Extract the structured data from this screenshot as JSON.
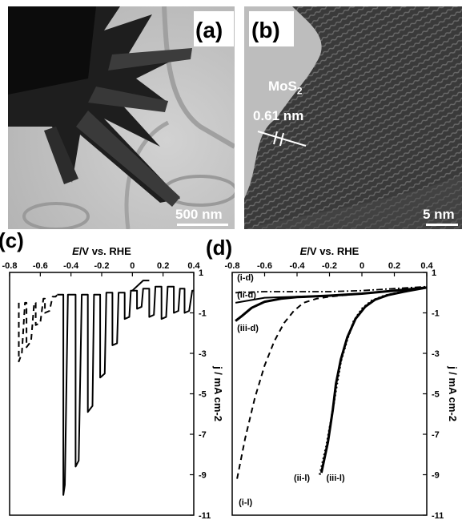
{
  "panels": {
    "a": {
      "label": "(a)",
      "scale_bar": "500 nm"
    },
    "b": {
      "label": "(b)",
      "scale_bar": "5 nm",
      "material": "MoS",
      "material_sub": "2",
      "spacing": "0.61 nm"
    }
  },
  "colors": {
    "ink": "#000000",
    "micrograph_light": "#c8c8c8",
    "micrograph_dark": "#1a1a1a"
  },
  "chart_data": [
    {
      "type": "line",
      "panel_label": "(c)",
      "xlabel_italic": "E",
      "xlabel_rest": "/V vs. RHE",
      "xlim": [
        -0.8,
        0.4
      ],
      "ylim": [
        -11,
        1
      ],
      "x_axis_position": "top",
      "y_axis_position": "right",
      "xticks": [
        "-0.8",
        "-0.6",
        "-0.4",
        "-0.2",
        "0",
        "0.2",
        "0.4"
      ],
      "yticks": [
        "1",
        "-1",
        "-3",
        "-5",
        "-7",
        "-9",
        "-11"
      ],
      "ylabel": "j / mA cm-2",
      "series": [
        {
          "style": "dashed",
          "points": [
            [
              -0.74,
              -0.5
            ],
            [
              -0.74,
              -3.4
            ],
            [
              -0.72,
              -3.0
            ],
            [
              -0.7,
              -0.5
            ],
            [
              -0.69,
              -0.5
            ],
            [
              -0.69,
              -2.7
            ],
            [
              -0.66,
              -2.4
            ],
            [
              -0.64,
              -0.5
            ],
            [
              -0.63,
              -0.5
            ],
            [
              -0.63,
              -1.6
            ],
            [
              -0.6,
              -1.5
            ],
            [
              -0.58,
              -0.3
            ],
            [
              -0.57,
              -0.3
            ],
            [
              -0.57,
              -1.0
            ],
            [
              -0.54,
              -0.9
            ],
            [
              -0.52,
              -0.2
            ],
            [
              -0.5,
              -0.2
            ],
            [
              -0.48,
              0
            ]
          ]
        },
        {
          "style": "solid",
          "points": [
            [
              -0.49,
              -0.1
            ],
            [
              -0.45,
              -0.1
            ],
            [
              -0.45,
              -10.0
            ],
            [
              -0.44,
              -9.5
            ],
            [
              -0.42,
              -0.1
            ],
            [
              -0.37,
              -0.1
            ],
            [
              -0.37,
              -8.6
            ],
            [
              -0.35,
              -8.3
            ],
            [
              -0.33,
              -0.1
            ],
            [
              -0.29,
              -0.1
            ],
            [
              -0.29,
              -5.9
            ],
            [
              -0.26,
              -5.6
            ],
            [
              -0.25,
              -0.1
            ],
            [
              -0.21,
              -0.1
            ],
            [
              -0.21,
              -4.2
            ],
            [
              -0.18,
              -4.0
            ],
            [
              -0.17,
              0
            ],
            [
              -0.13,
              0
            ],
            [
              -0.13,
              -2.6
            ],
            [
              -0.1,
              -2.5
            ],
            [
              -0.09,
              0
            ],
            [
              -0.05,
              0
            ],
            [
              -0.05,
              -1.3
            ],
            [
              -0.02,
              -1.2
            ],
            [
              -0.01,
              0.1
            ],
            [
              0.03,
              0.1
            ],
            [
              0.03,
              -0.8
            ],
            [
              0.06,
              -0.7
            ],
            [
              0.07,
              0.2
            ],
            [
              0.11,
              0.2
            ],
            [
              0.11,
              -1.2
            ],
            [
              0.14,
              -1.1
            ],
            [
              0.15,
              0.3
            ],
            [
              0.19,
              0.3
            ],
            [
              0.19,
              -1.3
            ],
            [
              0.22,
              -1.2
            ],
            [
              0.23,
              0.3
            ],
            [
              0.27,
              0.3
            ],
            [
              0.27,
              -1.0
            ],
            [
              0.3,
              -0.9
            ],
            [
              0.31,
              0.2
            ],
            [
              0.34,
              0.2
            ],
            [
              0.34,
              -1.0
            ],
            [
              0.37,
              -0.9
            ],
            [
              0.39,
              0.1
            ],
            [
              0.4,
              0.1
            ]
          ]
        },
        {
          "style": "spike",
          "points": [
            [
              0.0,
              0.1
            ],
            [
              0.07,
              0.6
            ],
            [
              0.11,
              0.6
            ]
          ]
        }
      ]
    },
    {
      "type": "line",
      "panel_label": "(d)",
      "xlabel_italic": "E",
      "xlabel_rest": "/V vs. RHE",
      "xlim": [
        -0.8,
        0.4
      ],
      "ylim": [
        -11,
        1
      ],
      "x_axis_position": "top",
      "y_axis_position": "right",
      "xticks": [
        "-0.8",
        "-0.6",
        "-0.4",
        "-0.2",
        "0",
        "0.2",
        "0.4"
      ],
      "yticks": [
        "1",
        "-1",
        "-3",
        "-5",
        "-7",
        "-9",
        "-11"
      ],
      "ylabel": "j / mA cm-2",
      "series": [
        {
          "name": "(i-d)",
          "style": "dashdot",
          "points": [
            [
              -0.78,
              0.0
            ],
            [
              -0.6,
              0.05
            ],
            [
              -0.4,
              0.05
            ],
            [
              -0.2,
              0.05
            ],
            [
              0.0,
              0.1
            ],
            [
              0.2,
              0.2
            ],
            [
              0.4,
              0.3
            ]
          ]
        },
        {
          "name": "(ii-d)",
          "style": "solid",
          "points": [
            [
              -0.78,
              -0.5
            ],
            [
              -0.6,
              -0.25
            ],
            [
              -0.4,
              -0.2
            ],
            [
              -0.2,
              -0.15
            ],
            [
              0.0,
              -0.05
            ],
            [
              0.2,
              0.1
            ],
            [
              0.4,
              0.25
            ]
          ]
        },
        {
          "name": "(iii-d)",
          "style": "solid-thick",
          "points": [
            [
              -0.78,
              -1.4
            ],
            [
              -0.74,
              -1.15
            ],
            [
              -0.68,
              -0.75
            ],
            [
              -0.6,
              -0.45
            ],
            [
              -0.5,
              -0.3
            ],
            [
              -0.4,
              -0.22
            ],
            [
              -0.2,
              -0.15
            ],
            [
              0.0,
              -0.05
            ],
            [
              0.2,
              0.1
            ],
            [
              0.4,
              0.25
            ]
          ]
        },
        {
          "name": "(i-l)",
          "style": "dashed",
          "points": [
            [
              -0.77,
              -9.2
            ],
            [
              -0.72,
              -7.2
            ],
            [
              -0.66,
              -5.2
            ],
            [
              -0.6,
              -3.6
            ],
            [
              -0.54,
              -2.4
            ],
            [
              -0.48,
              -1.5
            ],
            [
              -0.42,
              -0.9
            ],
            [
              -0.36,
              -0.5
            ],
            [
              -0.28,
              -0.3
            ],
            [
              -0.2,
              -0.2
            ],
            [
              -0.1,
              -0.12
            ],
            [
              0.0,
              -0.05
            ],
            [
              0.2,
              0.1
            ],
            [
              0.4,
              0.25
            ]
          ]
        },
        {
          "name": "(ii-l)",
          "style": "dotted",
          "points": [
            [
              -0.26,
              -9.0
            ],
            [
              -0.22,
              -7.6
            ],
            [
              -0.19,
              -6.3
            ],
            [
              -0.16,
              -4.8
            ],
            [
              -0.13,
              -3.4
            ],
            [
              -0.09,
              -2.3
            ],
            [
              -0.05,
              -1.4
            ],
            [
              0.0,
              -0.8
            ],
            [
              0.06,
              -0.4
            ],
            [
              0.14,
              -0.15
            ],
            [
              0.25,
              0.05
            ],
            [
              0.4,
              0.25
            ]
          ]
        },
        {
          "name": "(iii-l)",
          "style": "solid-thick",
          "points": [
            [
              -0.25,
              -8.9
            ],
            [
              -0.21,
              -7.4
            ],
            [
              -0.18,
              -5.8
            ],
            [
              -0.16,
              -4.5
            ],
            [
              -0.13,
              -3.3
            ],
            [
              -0.09,
              -2.2
            ],
            [
              -0.04,
              -1.3
            ],
            [
              0.02,
              -0.7
            ],
            [
              0.08,
              -0.35
            ],
            [
              0.16,
              -0.12
            ],
            [
              0.26,
              0.05
            ],
            [
              0.4,
              0.25
            ]
          ]
        }
      ],
      "annotations": [
        "(i-d)",
        "(ii-d)",
        "(iii-d)",
        "(i-l)",
        "(ii-l)",
        "(iii-l)"
      ]
    }
  ]
}
